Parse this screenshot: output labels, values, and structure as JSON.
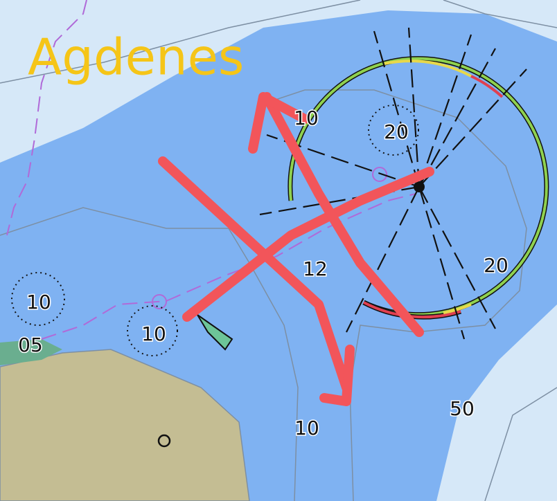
{
  "place_name": "Agdenes",
  "depths": [
    "10",
    "20",
    "12",
    "20",
    "10",
    "10",
    "05",
    "50",
    "10"
  ]
}
